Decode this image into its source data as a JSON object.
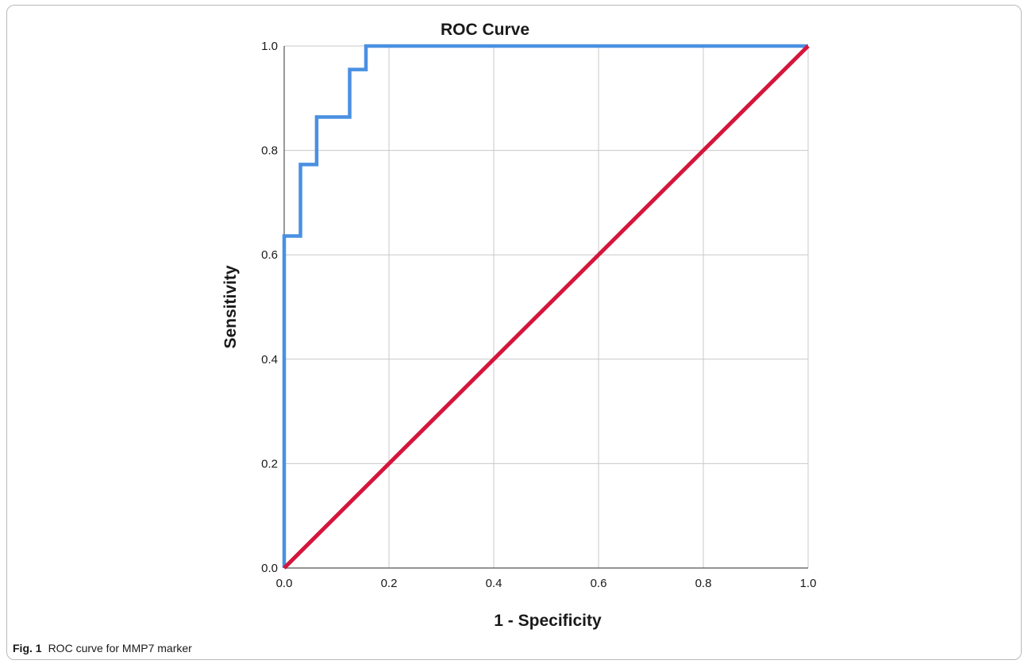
{
  "figure": {
    "label": "Fig. 1",
    "caption": "ROC curve for MMP7 marker"
  },
  "colors": {
    "roc_curve": "#4a90e2",
    "reference_line": "#d4163c",
    "grid": "#c8c8c8",
    "axis": "#555555"
  },
  "chart_data": {
    "type": "line",
    "title": "ROC Curve",
    "xlabel": "1 - Specificity",
    "ylabel": "Sensitivity",
    "xlim": [
      0.0,
      1.0
    ],
    "ylim": [
      0.0,
      1.0
    ],
    "xticks": [
      "0.0",
      "0.2",
      "0.4",
      "0.6",
      "0.8",
      "1.0"
    ],
    "yticks": [
      "0.0",
      "0.2",
      "0.4",
      "0.6",
      "0.8",
      "1.0"
    ],
    "grid": true,
    "series": [
      {
        "color": "#4a90e2",
        "style": "step",
        "x": [
          0.0,
          0.0,
          0.031,
          0.031,
          0.062,
          0.062,
          0.125,
          0.125,
          0.156,
          0.156,
          1.0
        ],
        "y": [
          0.0,
          0.636,
          0.636,
          0.773,
          0.773,
          0.864,
          0.864,
          0.955,
          0.955,
          1.0,
          1.0
        ]
      },
      {
        "color": "#d4163c",
        "style": "line",
        "x": [
          0.0,
          1.0
        ],
        "y": [
          0.0,
          1.0
        ]
      }
    ]
  }
}
